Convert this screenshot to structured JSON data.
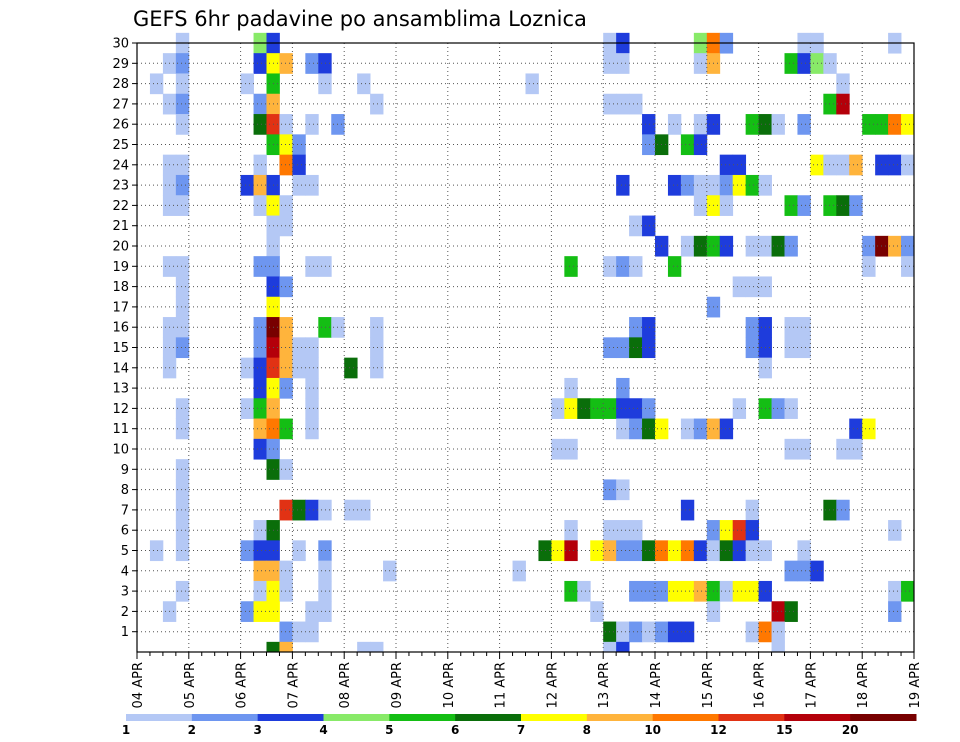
{
  "chart_data": {
    "type": "heatmap",
    "title": "GEFS 6hr padavine po ansamblima Loznica",
    "xlabel": "",
    "ylabel": "",
    "x_tick_labels": [
      "04 APR",
      "05 APR",
      "06 APR",
      "07 APR",
      "08 APR",
      "09 APR",
      "10 APR",
      "11 APR",
      "12 APR",
      "13 APR",
      "14 APR",
      "15 APR",
      "16 APR",
      "17 APR",
      "18 APR",
      "19 APR"
    ],
    "y_ticks": [
      1,
      2,
      3,
      4,
      5,
      6,
      7,
      8,
      9,
      10,
      11,
      12,
      13,
      14,
      15,
      16,
      17,
      18,
      19,
      20,
      21,
      22,
      23,
      24,
      25,
      26,
      27,
      28,
      29,
      30
    ],
    "x_range": [
      "04 APR 00Z",
      "19 APR 00Z"
    ],
    "x_step_hours": 6,
    "y_range": [
      0,
      30
    ],
    "grid": true,
    "colorbar": {
      "position": "bottom",
      "labels": [
        "1",
        "2",
        "3",
        "4",
        "5",
        "6",
        "7",
        "8",
        "10",
        "12",
        "15",
        "20"
      ],
      "bounds": [
        1,
        2,
        3,
        4,
        5,
        6,
        7,
        8,
        10,
        12,
        15,
        20
      ],
      "colors": [
        "#b4c8f5",
        "#6e96f0",
        "#1e3cdc",
        "#88ea68",
        "#14be14",
        "#0a6e0a",
        "#ffff00",
        "#ffb43c",
        "#ff7800",
        "#e13214",
        "#b4000a",
        "#780000"
      ]
    },
    "cells": [
      [
        30,
        3,
        1
      ],
      [
        30,
        9,
        4
      ],
      [
        30,
        10,
        3
      ],
      [
        30,
        36,
        1
      ],
      [
        30,
        37,
        3
      ],
      [
        30,
        43,
        4
      ],
      [
        30,
        44,
        10
      ],
      [
        30,
        45,
        2
      ],
      [
        30,
        51,
        1
      ],
      [
        30,
        52,
        1
      ],
      [
        30,
        58,
        1
      ],
      [
        29,
        2,
        1
      ],
      [
        29,
        3,
        2
      ],
      [
        29,
        9,
        3
      ],
      [
        29,
        10,
        7
      ],
      [
        29,
        11,
        8
      ],
      [
        29,
        13,
        2
      ],
      [
        29,
        14,
        3
      ],
      [
        29,
        36,
        1
      ],
      [
        29,
        37,
        1
      ],
      [
        29,
        43,
        1
      ],
      [
        29,
        44,
        8
      ],
      [
        29,
        50,
        5
      ],
      [
        29,
        51,
        3
      ],
      [
        29,
        52,
        4
      ],
      [
        29,
        53,
        1
      ],
      [
        28,
        1,
        1
      ],
      [
        28,
        3,
        1
      ],
      [
        28,
        8,
        1
      ],
      [
        28,
        10,
        5
      ],
      [
        28,
        14,
        1
      ],
      [
        28,
        17,
        1
      ],
      [
        28,
        30,
        1
      ],
      [
        28,
        54,
        1
      ],
      [
        27,
        2,
        1
      ],
      [
        27,
        3,
        2
      ],
      [
        27,
        9,
        2
      ],
      [
        27,
        10,
        8
      ],
      [
        27,
        18,
        1
      ],
      [
        27,
        36,
        1
      ],
      [
        27,
        37,
        1
      ],
      [
        27,
        38,
        1
      ],
      [
        27,
        53,
        5
      ],
      [
        27,
        54,
        15
      ],
      [
        26,
        3,
        1
      ],
      [
        26,
        9,
        6
      ],
      [
        26,
        10,
        12
      ],
      [
        26,
        11,
        1
      ],
      [
        26,
        13,
        1
      ],
      [
        26,
        15,
        2
      ],
      [
        26,
        39,
        3
      ],
      [
        26,
        41,
        1
      ],
      [
        26,
        43,
        1
      ],
      [
        26,
        44,
        3
      ],
      [
        26,
        47,
        5
      ],
      [
        26,
        48,
        6
      ],
      [
        26,
        49,
        1
      ],
      [
        26,
        51,
        2
      ],
      [
        26,
        56,
        5
      ],
      [
        26,
        57,
        5
      ],
      [
        26,
        58,
        10
      ],
      [
        26,
        59,
        7
      ],
      [
        25,
        10,
        5
      ],
      [
        25,
        11,
        7
      ],
      [
        25,
        12,
        2
      ],
      [
        25,
        39,
        2
      ],
      [
        25,
        40,
        6
      ],
      [
        25,
        42,
        5
      ],
      [
        25,
        43,
        3
      ],
      [
        24,
        2,
        1
      ],
      [
        24,
        3,
        1
      ],
      [
        24,
        9,
        1
      ],
      [
        24,
        11,
        10
      ],
      [
        24,
        12,
        3
      ],
      [
        24,
        45,
        3
      ],
      [
        24,
        46,
        3
      ],
      [
        24,
        52,
        7
      ],
      [
        24,
        53,
        1
      ],
      [
        24,
        54,
        1
      ],
      [
        24,
        55,
        8
      ],
      [
        24,
        57,
        3
      ],
      [
        24,
        58,
        3
      ],
      [
        24,
        59,
        1
      ],
      [
        23,
        2,
        1
      ],
      [
        23,
        3,
        2
      ],
      [
        23,
        8,
        3
      ],
      [
        23,
        9,
        8
      ],
      [
        23,
        10,
        3
      ],
      [
        23,
        12,
        1
      ],
      [
        23,
        13,
        1
      ],
      [
        23,
        37,
        3
      ],
      [
        23,
        41,
        3
      ],
      [
        23,
        42,
        2
      ],
      [
        23,
        43,
        1
      ],
      [
        23,
        44,
        1
      ],
      [
        23,
        45,
        2
      ],
      [
        23,
        46,
        7
      ],
      [
        23,
        47,
        5
      ],
      [
        23,
        48,
        1
      ],
      [
        22,
        2,
        1
      ],
      [
        22,
        3,
        1
      ],
      [
        22,
        9,
        1
      ],
      [
        22,
        10,
        7
      ],
      [
        22,
        11,
        1
      ],
      [
        22,
        43,
        1
      ],
      [
        22,
        44,
        7
      ],
      [
        22,
        45,
        1
      ],
      [
        22,
        50,
        5
      ],
      [
        22,
        51,
        2
      ],
      [
        22,
        53,
        5
      ],
      [
        22,
        54,
        6
      ],
      [
        22,
        55,
        2
      ],
      [
        21,
        10,
        1
      ],
      [
        21,
        11,
        1
      ],
      [
        21,
        38,
        1
      ],
      [
        21,
        39,
        3
      ],
      [
        20,
        10,
        1
      ],
      [
        20,
        40,
        3
      ],
      [
        20,
        42,
        1
      ],
      [
        20,
        43,
        6
      ],
      [
        20,
        44,
        5
      ],
      [
        20,
        45,
        3
      ],
      [
        20,
        47,
        1
      ],
      [
        20,
        48,
        1
      ],
      [
        20,
        49,
        6
      ],
      [
        20,
        50,
        2
      ],
      [
        20,
        56,
        2
      ],
      [
        20,
        57,
        20
      ],
      [
        20,
        58,
        8
      ],
      [
        20,
        59,
        2
      ],
      [
        19,
        2,
        1
      ],
      [
        19,
        3,
        1
      ],
      [
        19,
        9,
        2
      ],
      [
        19,
        10,
        2
      ],
      [
        19,
        13,
        1
      ],
      [
        19,
        14,
        1
      ],
      [
        19,
        33,
        5
      ],
      [
        19,
        36,
        1
      ],
      [
        19,
        37,
        2
      ],
      [
        19,
        38,
        1
      ],
      [
        19,
        41,
        5
      ],
      [
        19,
        56,
        1
      ],
      [
        19,
        59,
        1
      ],
      [
        18,
        3,
        1
      ],
      [
        18,
        10,
        3
      ],
      [
        18,
        11,
        2
      ],
      [
        18,
        46,
        1
      ],
      [
        18,
        47,
        1
      ],
      [
        18,
        48,
        1
      ],
      [
        17,
        3,
        1
      ],
      [
        17,
        10,
        7
      ],
      [
        17,
        44,
        2
      ],
      [
        16,
        2,
        1
      ],
      [
        16,
        3,
        1
      ],
      [
        16,
        9,
        2
      ],
      [
        16,
        10,
        20
      ],
      [
        16,
        11,
        8
      ],
      [
        16,
        14,
        5
      ],
      [
        16,
        15,
        1
      ],
      [
        16,
        18,
        1
      ],
      [
        16,
        38,
        2
      ],
      [
        16,
        39,
        3
      ],
      [
        16,
        47,
        2
      ],
      [
        16,
        48,
        3
      ],
      [
        16,
        50,
        1
      ],
      [
        16,
        51,
        1
      ],
      [
        15,
        2,
        1
      ],
      [
        15,
        3,
        2
      ],
      [
        15,
        9,
        2
      ],
      [
        15,
        10,
        15
      ],
      [
        15,
        11,
        8
      ],
      [
        15,
        12,
        1
      ],
      [
        15,
        13,
        1
      ],
      [
        15,
        18,
        1
      ],
      [
        15,
        36,
        2
      ],
      [
        15,
        37,
        2
      ],
      [
        15,
        38,
        6
      ],
      [
        15,
        39,
        3
      ],
      [
        15,
        47,
        2
      ],
      [
        15,
        48,
        3
      ],
      [
        15,
        50,
        1
      ],
      [
        15,
        51,
        1
      ],
      [
        14,
        2,
        1
      ],
      [
        14,
        8,
        1
      ],
      [
        14,
        9,
        3
      ],
      [
        14,
        10,
        12
      ],
      [
        14,
        11,
        8
      ],
      [
        14,
        12,
        1
      ],
      [
        14,
        13,
        1
      ],
      [
        14,
        16,
        6
      ],
      [
        14,
        18,
        1
      ],
      [
        14,
        48,
        1
      ],
      [
        13,
        9,
        3
      ],
      [
        13,
        10,
        7
      ],
      [
        13,
        11,
        2
      ],
      [
        13,
        13,
        1
      ],
      [
        13,
        33,
        1
      ],
      [
        13,
        37,
        2
      ],
      [
        12,
        3,
        1
      ],
      [
        12,
        8,
        1
      ],
      [
        12,
        9,
        5
      ],
      [
        12,
        10,
        8
      ],
      [
        12,
        13,
        1
      ],
      [
        12,
        32,
        1
      ],
      [
        12,
        33,
        7
      ],
      [
        12,
        34,
        6
      ],
      [
        12,
        35,
        5
      ],
      [
        12,
        36,
        5
      ],
      [
        12,
        37,
        3
      ],
      [
        12,
        38,
        3
      ],
      [
        12,
        39,
        2
      ],
      [
        12,
        46,
        1
      ],
      [
        12,
        48,
        5
      ],
      [
        12,
        49,
        2
      ],
      [
        12,
        50,
        1
      ],
      [
        11,
        3,
        1
      ],
      [
        11,
        9,
        8
      ],
      [
        11,
        10,
        10
      ],
      [
        11,
        11,
        5
      ],
      [
        11,
        13,
        1
      ],
      [
        11,
        37,
        1
      ],
      [
        11,
        38,
        2
      ],
      [
        11,
        39,
        6
      ],
      [
        11,
        40,
        7
      ],
      [
        11,
        42,
        1
      ],
      [
        11,
        43,
        2
      ],
      [
        11,
        44,
        8
      ],
      [
        11,
        45,
        3
      ],
      [
        11,
        55,
        3
      ],
      [
        11,
        56,
        7
      ],
      [
        10,
        9,
        3
      ],
      [
        10,
        10,
        2
      ],
      [
        10,
        32,
        1
      ],
      [
        10,
        33,
        1
      ],
      [
        10,
        50,
        1
      ],
      [
        10,
        51,
        1
      ],
      [
        10,
        54,
        1
      ],
      [
        10,
        55,
        1
      ],
      [
        9,
        3,
        1
      ],
      [
        9,
        10,
        6
      ],
      [
        9,
        11,
        1
      ],
      [
        8,
        3,
        1
      ],
      [
        8,
        36,
        2
      ],
      [
        8,
        37,
        1
      ],
      [
        7,
        3,
        1
      ],
      [
        7,
        11,
        12
      ],
      [
        7,
        12,
        6
      ],
      [
        7,
        13,
        3
      ],
      [
        7,
        14,
        1
      ],
      [
        7,
        16,
        1
      ],
      [
        7,
        17,
        1
      ],
      [
        7,
        42,
        3
      ],
      [
        7,
        47,
        1
      ],
      [
        7,
        53,
        6
      ],
      [
        7,
        54,
        2
      ],
      [
        6,
        3,
        1
      ],
      [
        6,
        9,
        1
      ],
      [
        6,
        10,
        6
      ],
      [
        6,
        33,
        1
      ],
      [
        6,
        36,
        1
      ],
      [
        6,
        37,
        1
      ],
      [
        6,
        38,
        1
      ],
      [
        6,
        44,
        2
      ],
      [
        6,
        45,
        7
      ],
      [
        6,
        46,
        12
      ],
      [
        6,
        47,
        3
      ],
      [
        6,
        58,
        1
      ],
      [
        5,
        1,
        1
      ],
      [
        5,
        3,
        1
      ],
      [
        5,
        8,
        2
      ],
      [
        5,
        9,
        3
      ],
      [
        5,
        10,
        3
      ],
      [
        5,
        12,
        1
      ],
      [
        5,
        14,
        2
      ],
      [
        5,
        31,
        6
      ],
      [
        5,
        32,
        7
      ],
      [
        5,
        33,
        15
      ],
      [
        5,
        35,
        7
      ],
      [
        5,
        36,
        8
      ],
      [
        5,
        37,
        2
      ],
      [
        5,
        38,
        2
      ],
      [
        5,
        39,
        6
      ],
      [
        5,
        40,
        10
      ],
      [
        5,
        41,
        7
      ],
      [
        5,
        42,
        10
      ],
      [
        5,
        43,
        3
      ],
      [
        5,
        44,
        1
      ],
      [
        5,
        45,
        6
      ],
      [
        5,
        46,
        3
      ],
      [
        5,
        47,
        1
      ],
      [
        5,
        48,
        1
      ],
      [
        5,
        51,
        1
      ],
      [
        4,
        9,
        8
      ],
      [
        4,
        10,
        8
      ],
      [
        4,
        11,
        1
      ],
      [
        4,
        14,
        1
      ],
      [
        4,
        19,
        1
      ],
      [
        4,
        29,
        1
      ],
      [
        4,
        50,
        2
      ],
      [
        4,
        51,
        2
      ],
      [
        4,
        52,
        3
      ],
      [
        3,
        3,
        1
      ],
      [
        3,
        9,
        1
      ],
      [
        3,
        10,
        7
      ],
      [
        3,
        11,
        1
      ],
      [
        3,
        14,
        1
      ],
      [
        3,
        33,
        5
      ],
      [
        3,
        34,
        1
      ],
      [
        3,
        38,
        2
      ],
      [
        3,
        39,
        2
      ],
      [
        3,
        40,
        2
      ],
      [
        3,
        41,
        7
      ],
      [
        3,
        42,
        7
      ],
      [
        3,
        43,
        8
      ],
      [
        3,
        44,
        5
      ],
      [
        3,
        45,
        1
      ],
      [
        3,
        46,
        7
      ],
      [
        3,
        47,
        7
      ],
      [
        3,
        48,
        3
      ],
      [
        3,
        58,
        1
      ],
      [
        3,
        59,
        5
      ],
      [
        2,
        2,
        1
      ],
      [
        2,
        8,
        2
      ],
      [
        2,
        9,
        7
      ],
      [
        2,
        10,
        7
      ],
      [
        2,
        13,
        1
      ],
      [
        2,
        14,
        1
      ],
      [
        2,
        35,
        1
      ],
      [
        2,
        44,
        1
      ],
      [
        2,
        49,
        15
      ],
      [
        2,
        50,
        6
      ],
      [
        2,
        58,
        2
      ],
      [
        1,
        11,
        2
      ],
      [
        1,
        12,
        1
      ],
      [
        1,
        13,
        1
      ],
      [
        1,
        36,
        6
      ],
      [
        1,
        37,
        1
      ],
      [
        1,
        38,
        2
      ],
      [
        1,
        39,
        1
      ],
      [
        1,
        40,
        2
      ],
      [
        1,
        41,
        3
      ],
      [
        1,
        42,
        3
      ],
      [
        1,
        47,
        1
      ],
      [
        1,
        48,
        10
      ],
      [
        1,
        49,
        1
      ]
    ],
    "bottom_row_cells": [
      [
        10,
        6
      ],
      [
        11,
        8
      ],
      [
        17,
        1
      ],
      [
        18,
        1
      ],
      [
        36,
        1
      ],
      [
        37,
        3
      ],
      [
        49,
        1
      ]
    ]
  }
}
